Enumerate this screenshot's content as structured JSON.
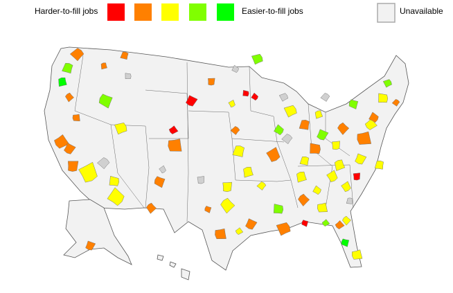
{
  "legend": {
    "harder_label": "Harder-to-fill jobs",
    "easier_label": "Easier-to-fill jobs",
    "unavailable_label": "Unavailable",
    "scale_colors": [
      "#ff0000",
      "#ff8000",
      "#ffff00",
      "#80ff00",
      "#00ff00"
    ],
    "unavailable_color": "#f2f2f2"
  }
}
